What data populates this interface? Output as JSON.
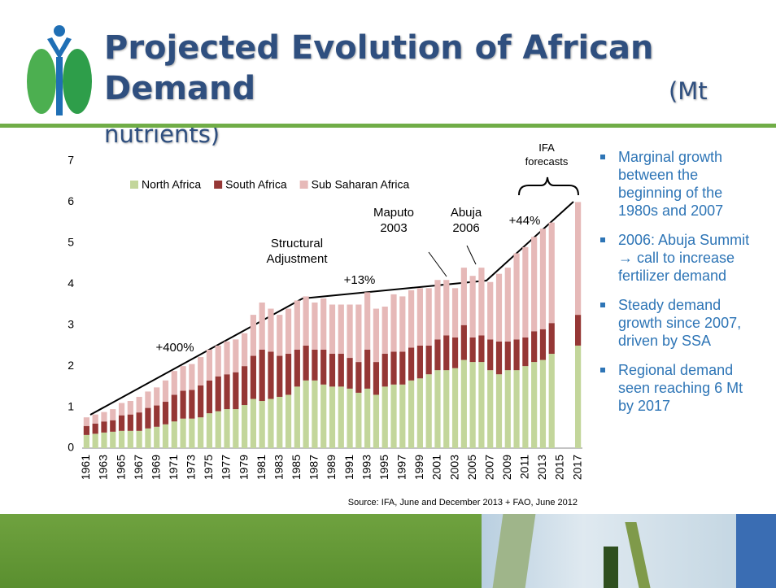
{
  "slide": {
    "title": "Projected Evolution of African Demand",
    "title_unit": "(Mt nutrients)",
    "bullets": [
      "Marginal growth between the beginning of the 1980s and 2007",
      "2006: Abuja Summit → call to increase fertilizer demand",
      "Steady demand growth since 2007, driven by SSA",
      "Regional demand seen reaching 6 Mt by 2017"
    ]
  },
  "chart_data": {
    "type": "stacked_bar",
    "categories": [
      "1961",
      null,
      "1963",
      null,
      "1965",
      null,
      "1967",
      null,
      "1969",
      null,
      "1971",
      null,
      "1973",
      null,
      "1975",
      null,
      "1977",
      null,
      "1979",
      null,
      "1981",
      null,
      "1983",
      null,
      "1985",
      null,
      "1987",
      null,
      "1989",
      null,
      "1991",
      null,
      "1993",
      null,
      "1995",
      null,
      "1997",
      null,
      "1999",
      null,
      "2001",
      null,
      "2003",
      null,
      "2005",
      null,
      "2007",
      null,
      "2009",
      null,
      "2011",
      null,
      "2013",
      null,
      "2015",
      null,
      "2017"
    ],
    "series": [
      {
        "name": "North Africa",
        "color": "#c3d69b",
        "values": [
          0.32,
          0.35,
          0.38,
          0.4,
          0.42,
          0.42,
          0.42,
          0.48,
          0.52,
          0.58,
          0.65,
          0.72,
          0.72,
          0.75,
          0.85,
          0.9,
          0.95,
          0.95,
          1.05,
          1.2,
          1.15,
          1.2,
          1.25,
          1.3,
          1.5,
          1.65,
          1.65,
          1.55,
          1.5,
          1.5,
          1.45,
          1.35,
          1.45,
          1.3,
          1.5,
          1.55,
          1.55,
          1.65,
          1.7,
          1.8,
          1.9,
          1.9,
          1.95,
          2.15,
          2.1,
          2.1,
          1.9,
          1.8,
          1.9,
          1.9,
          2.0,
          2.1,
          2.15,
          2.3,
          null,
          null,
          2.5
        ]
      },
      {
        "name": "South Africa",
        "color": "#953735",
        "values": [
          0.22,
          0.25,
          0.27,
          0.28,
          0.38,
          0.4,
          0.45,
          0.5,
          0.52,
          0.55,
          0.65,
          0.68,
          0.7,
          0.78,
          0.8,
          0.85,
          0.85,
          0.9,
          0.95,
          1.05,
          1.25,
          1.15,
          1.0,
          1.0,
          0.9,
          0.85,
          0.75,
          0.85,
          0.8,
          0.8,
          0.75,
          0.75,
          0.95,
          0.8,
          0.8,
          0.8,
          0.8,
          0.8,
          0.8,
          0.7,
          0.75,
          0.85,
          0.75,
          0.85,
          0.6,
          0.65,
          0.75,
          0.8,
          0.7,
          0.75,
          0.7,
          0.75,
          0.75,
          0.75,
          null,
          null,
          0.75
        ]
      },
      {
        "name": "Sub Saharan Africa",
        "color": "#e6b9b8",
        "values": [
          0.21,
          0.22,
          0.23,
          0.27,
          0.3,
          0.33,
          0.38,
          0.4,
          0.44,
          0.52,
          0.58,
          0.6,
          0.63,
          0.69,
          0.75,
          0.75,
          0.8,
          0.8,
          0.8,
          1.0,
          1.15,
          1.05,
          1.0,
          1.1,
          1.2,
          1.2,
          1.15,
          1.25,
          1.2,
          1.2,
          1.3,
          1.4,
          1.4,
          1.3,
          1.15,
          1.4,
          1.35,
          1.4,
          1.4,
          1.4,
          1.45,
          1.35,
          1.2,
          1.4,
          1.5,
          1.65,
          1.4,
          1.65,
          1.8,
          2.1,
          2.2,
          2.3,
          2.45,
          2.45,
          null,
          null,
          2.75
        ]
      }
    ],
    "ylim": [
      0,
      7
    ],
    "yticks": [
      0,
      1,
      2,
      3,
      4,
      5,
      6,
      7
    ],
    "legend": "top",
    "annotations": [
      "IFA forecasts",
      "+44%",
      "Abuja 2006",
      "Maputo 2003",
      "Structural Adjustment",
      "+13%",
      "+400%"
    ],
    "source": "Source: IFA, June and December 2013 + FAO, June 2012"
  }
}
